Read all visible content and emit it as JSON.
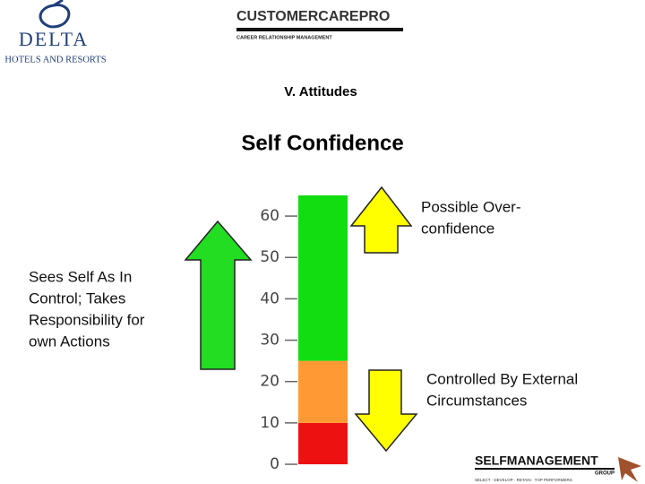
{
  "logos": {
    "delta": {
      "name": "DELTA",
      "tagline": "HOTELS AND RESORTS"
    },
    "customer_care": {
      "name": "CUSTOMERCAREPRO",
      "tagline": "CAREER RELATIONSHIP MANAGEMENT"
    },
    "self_management": {
      "name": "SELFMANAGEMENT",
      "tagline": "GROUP",
      "footer": "SELECT · DEVELOP · RETAIN · TOP PERFORMERS"
    }
  },
  "chart_data": {
    "type": "bar",
    "stacked": true,
    "section": "V. Attitudes",
    "title": "Self Confidence",
    "categories": [
      null
    ],
    "series": [
      {
        "color": "#ee1111",
        "values": [
          10
        ]
      },
      {
        "color": "#ff9933",
        "values": [
          15
        ]
      },
      {
        "color": "#11dd11",
        "values": [
          40
        ]
      }
    ],
    "ylim": [
      0,
      65
    ],
    "yticks": [
      0,
      10,
      20,
      30,
      40,
      50,
      60
    ],
    "annotations": [
      {
        "lines": [
          "Possible Over-",
          "confidence"
        ]
      },
      {
        "lines": [
          "Sees Self As In",
          "Control; Takes",
          "Responsibility for",
          "own Actions"
        ]
      },
      {
        "lines": [
          "Controlled By External",
          "Circumstances"
        ]
      }
    ]
  }
}
